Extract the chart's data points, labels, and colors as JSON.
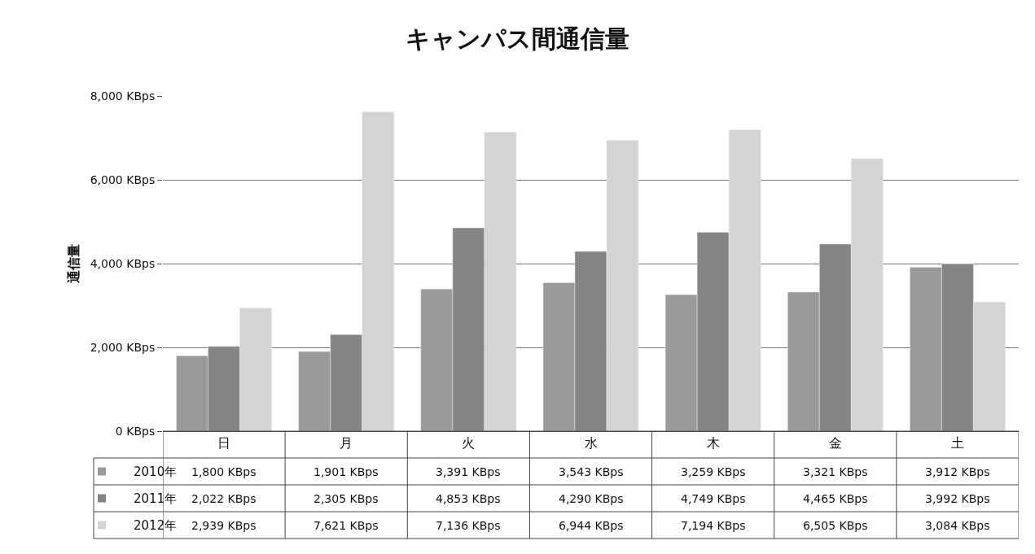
{
  "chart_data": {
    "type": "bar",
    "title": "キャンパス間通信量",
    "ylabel": "通信量",
    "categories": [
      "日",
      "月",
      "火",
      "水",
      "木",
      "金",
      "土"
    ],
    "series": [
      {
        "name": "2010年",
        "color": "#9a9a9a",
        "values": [
          1800,
          1901,
          3391,
          3543,
          3259,
          3321,
          3912
        ],
        "value_labels": [
          "1,800 KBps",
          "1,901 KBps",
          "3,391 KBps",
          "3,543 KBps",
          "3,259 KBps",
          "3,321 KBps",
          "3,912 KBps"
        ]
      },
      {
        "name": "2011年",
        "color": "#858585",
        "values": [
          2022,
          2305,
          4853,
          4290,
          4749,
          4465,
          3992
        ],
        "value_labels": [
          "2,022 KBps",
          "2,305 KBps",
          "4,853 KBps",
          "4,290 KBps",
          "4,749 KBps",
          "4,465 KBps",
          "3,992 KBps"
        ]
      },
      {
        "name": "2012年",
        "color": "#d4d4d4",
        "values": [
          2939,
          7621,
          7136,
          6944,
          7194,
          6505,
          3084
        ],
        "value_labels": [
          "2,939 KBps",
          "7,621 KBps",
          "7,136 KBps",
          "6,944 KBps",
          "7,194 KBps",
          "6,505 KBps",
          "3,084 KBps"
        ]
      }
    ],
    "ylim": [
      0,
      8000
    ],
    "yticks": [
      {
        "value": 0,
        "label": "0 KBps"
      },
      {
        "value": 2000,
        "label": "2,000 KBps"
      },
      {
        "value": 4000,
        "label": "4,000 KBps"
      },
      {
        "value": 6000,
        "label": "6,000 KBps"
      },
      {
        "value": 8000,
        "label": "8,000 KBps"
      }
    ],
    "grid": "y",
    "legend": "bottom left"
  }
}
